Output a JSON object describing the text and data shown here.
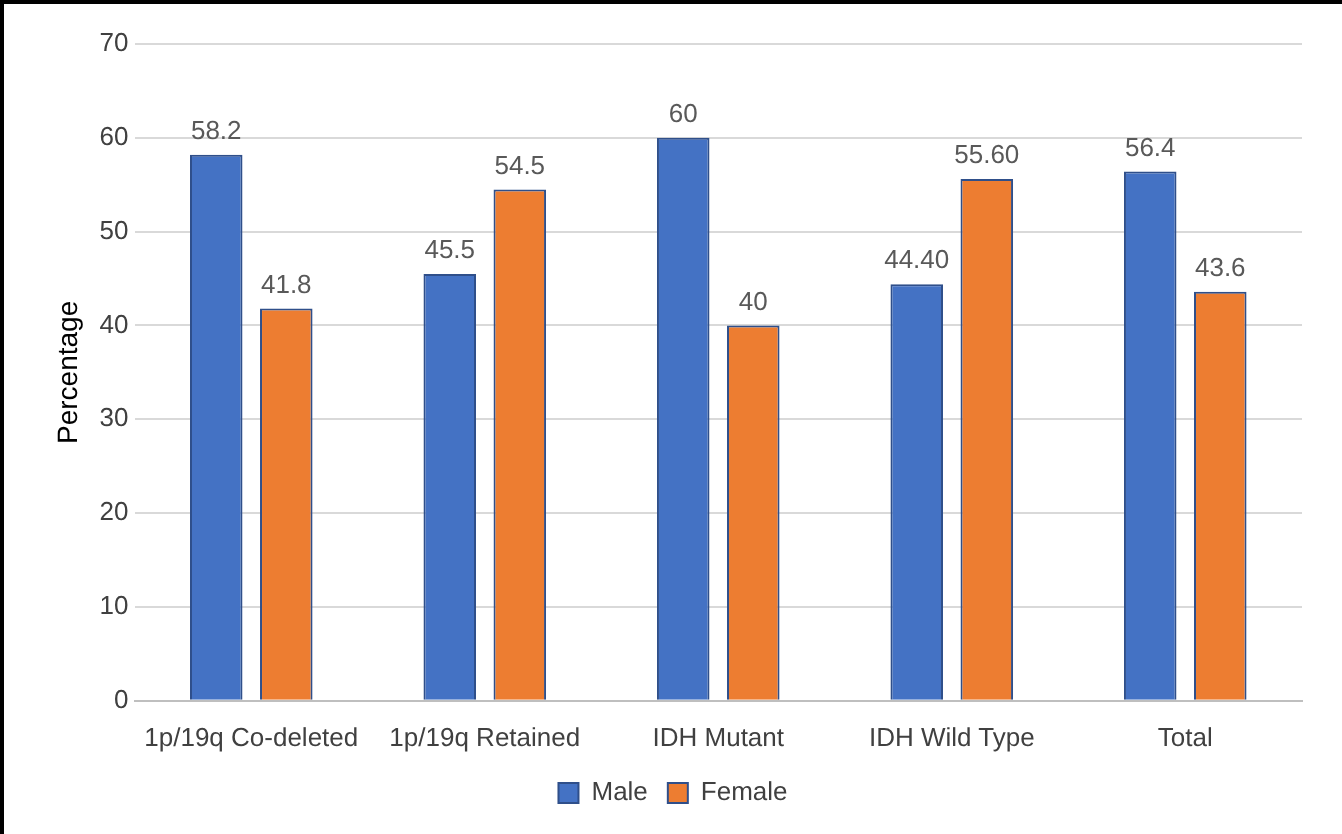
{
  "chart_data": {
    "type": "bar",
    "ylabel": "Percentage",
    "categories": [
      "1p/19q Co-deleted",
      "1p/19q Retained",
      "IDH Mutant",
      "IDH Wild Type",
      "Total"
    ],
    "series": [
      {
        "name": "Male",
        "color": "#4472c4",
        "values": [
          58.2,
          45.5,
          60,
          44.4,
          56.4
        ],
        "value_labels": [
          "58.2",
          "45.5",
          "60",
          "44.40",
          "56.4"
        ]
      },
      {
        "name": "Female",
        "color": "#ed7d31",
        "values": [
          41.8,
          54.5,
          40,
          55.6,
          43.6
        ],
        "value_labels": [
          "41.8",
          "54.5",
          "40",
          "55.60",
          "43.6"
        ]
      }
    ],
    "ylim": [
      0,
      70
    ],
    "yticks": [
      0,
      10,
      20,
      30,
      40,
      50,
      60,
      70
    ],
    "grid": "y",
    "legend": "bottom"
  }
}
